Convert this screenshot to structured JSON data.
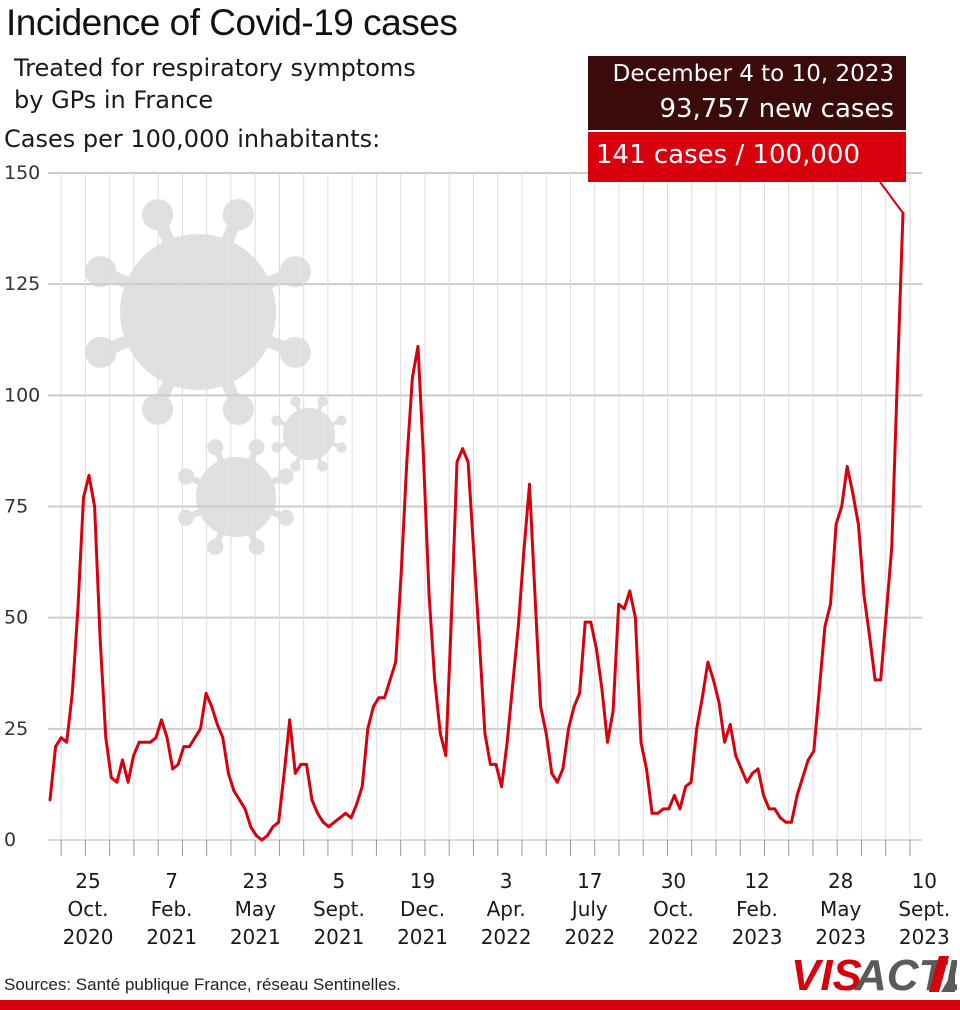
{
  "header": {
    "title": "Incidence of Covid-19 cases",
    "subtitle_line1": "Treated for respiratory symptoms",
    "subtitle_line2": "by GPs in France",
    "ylabel": "Cases per 100,000 inhabitants:"
  },
  "highlight": {
    "date": "December 4 to 10, 2023",
    "new_cases": "93,757 new cases",
    "rate": "141 cases / 100,000"
  },
  "footer": {
    "source": "Sources: Santé publique France, réseau Sentinelles."
  },
  "logo": {
    "text_red": "VIS",
    "text_grey": "ACTU"
  },
  "colors": {
    "line": "#d9000d",
    "dark_box": "#3b0a0a",
    "grid": "#cccccc",
    "virus": "#e0e0e0"
  },
  "chart_data": {
    "type": "line",
    "title": "Incidence of Covid-19 cases",
    "subtitle": "Treated for respiratory symptoms by GPs in France",
    "ylabel": "Cases per 100,000 inhabitants:",
    "ylim": [
      0,
      150
    ],
    "yticks": [
      0,
      25,
      50,
      75,
      100,
      125,
      150
    ],
    "grid": true,
    "x_tick_labels": [
      [
        "25",
        "Oct.",
        "2020"
      ],
      [
        "7",
        "Feb.",
        "2021"
      ],
      [
        "23",
        "May",
        "2021"
      ],
      [
        "5",
        "Sept.",
        "2021"
      ],
      [
        "19",
        "Dec.",
        "2021"
      ],
      [
        "3",
        "Apr.",
        "2022"
      ],
      [
        "17",
        "July",
        "2022"
      ],
      [
        "30",
        "Oct.",
        "2022"
      ],
      [
        "12",
        "Feb.",
        "2023"
      ],
      [
        "28",
        "May",
        "2023"
      ],
      [
        "10",
        "Sept.",
        "2023"
      ]
    ],
    "week_start": "2020-09-07",
    "values": [
      9,
      21,
      23,
      22,
      33,
      52,
      77,
      82,
      75,
      45,
      23,
      14,
      13,
      18,
      13,
      19,
      22,
      22,
      22,
      23,
      27,
      23,
      16,
      17,
      21,
      21,
      23,
      25,
      33,
      30,
      26,
      23,
      15,
      11,
      9,
      7,
      3,
      1,
      0,
      1,
      3,
      4,
      15,
      27,
      15,
      17,
      17,
      9,
      6,
      4,
      3,
      4,
      5,
      6,
      5,
      8,
      12,
      25,
      30,
      32,
      32,
      36,
      40,
      60,
      85,
      104,
      111,
      86,
      55,
      36,
      24,
      19,
      50,
      85,
      88,
      85,
      65,
      45,
      24,
      17,
      17,
      12,
      22,
      35,
      48,
      65,
      80,
      55,
      30,
      24,
      15,
      13,
      16,
      25,
      30,
      33,
      49,
      49,
      43,
      34,
      22,
      29,
      53,
      52,
      56,
      50,
      22,
      16,
      6,
      6,
      7,
      7,
      10,
      7,
      12,
      13,
      25,
      32,
      40,
      36,
      31,
      22,
      26,
      19,
      16,
      13,
      15,
      16,
      10,
      7,
      7,
      5,
      4,
      4,
      10,
      14,
      18,
      20,
      34,
      48,
      53,
      71,
      75,
      84,
      78,
      71,
      55,
      46,
      36,
      36,
      51,
      66,
      104,
      141
    ]
  }
}
